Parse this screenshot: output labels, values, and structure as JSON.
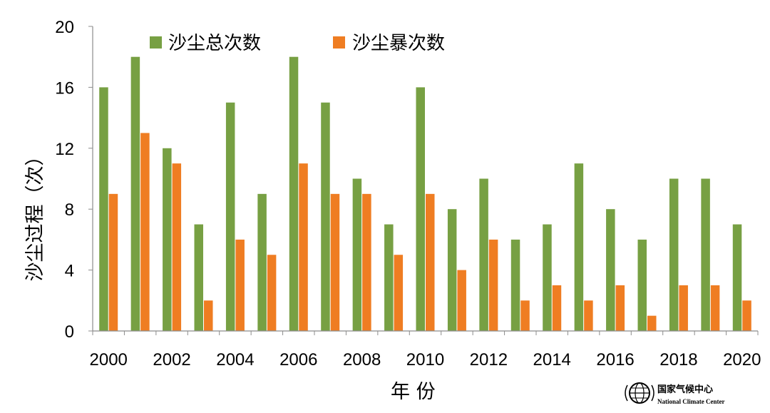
{
  "chart_data": {
    "type": "bar",
    "title": "",
    "xlabel": "年 份",
    "ylabel": "沙尘过程（次）",
    "ylim": [
      0,
      20
    ],
    "yticks": [
      0,
      4,
      8,
      12,
      16,
      20
    ],
    "categories": [
      "2000",
      "2001",
      "2002",
      "2003",
      "2004",
      "2005",
      "2006",
      "2007",
      "2008",
      "2009",
      "2010",
      "2011",
      "2012",
      "2013",
      "2014",
      "2015",
      "2016",
      "2017",
      "2018",
      "2019",
      "2020"
    ],
    "xtick_labels": [
      "2000",
      "2002",
      "2004",
      "2006",
      "2008",
      "2010",
      "2012",
      "2014",
      "2016",
      "2018",
      "2020"
    ],
    "series": [
      {
        "name": "沙尘总次数",
        "color": "#77a043",
        "values": [
          16,
          18,
          12,
          7,
          15,
          9,
          18,
          15,
          10,
          7,
          16,
          8,
          10,
          6,
          7,
          11,
          8,
          6,
          10,
          10,
          7
        ]
      },
      {
        "name": "沙尘暴次数",
        "color": "#ef7d22",
        "values": [
          9,
          13,
          11,
          2,
          6,
          5,
          11,
          9,
          9,
          5,
          9,
          4,
          6,
          2,
          3,
          2,
          3,
          1,
          3,
          3,
          2
        ]
      }
    ],
    "legend_position": "top",
    "grid": false
  },
  "logo": {
    "name_cn": "国家气候中心",
    "name_en": "National Climate Center",
    "icon": "globe-emblem-icon"
  }
}
